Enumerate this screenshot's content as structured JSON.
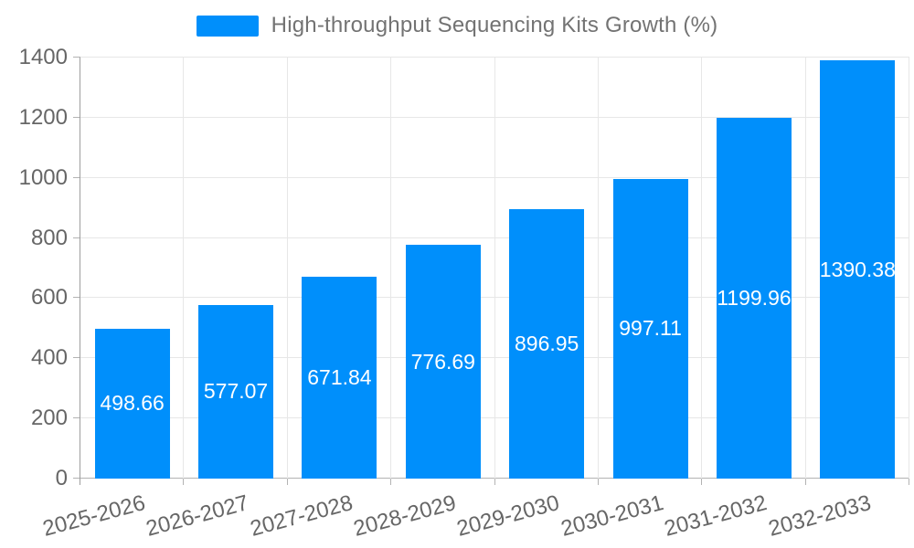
{
  "chart_data": {
    "type": "bar",
    "title": "High-throughput Sequencing Kits Growth (%)",
    "categories": [
      "2025-2026",
      "2026-2027",
      "2027-2028",
      "2028-2029",
      "2029-2030",
      "2030-2031",
      "2031-2032",
      "2032-2033"
    ],
    "values": [
      498.66,
      577.07,
      671.84,
      776.69,
      896.95,
      997.11,
      1199.96,
      1390.38
    ],
    "value_labels": [
      "498.66",
      "577.07",
      "671.84",
      "776.69",
      "896.95",
      "997.11",
      "1199.96",
      "1390.38"
    ],
    "xlabel": "",
    "ylabel": "",
    "ylim": [
      0,
      1400
    ],
    "ytick_step": 200,
    "yticks": [
      0,
      200,
      400,
      600,
      800,
      1000,
      1200,
      1400
    ],
    "ytick_labels": [
      "0",
      "200",
      "400",
      "600",
      "800",
      "1000",
      "1200",
      "1400"
    ],
    "grid": true,
    "legend_position": "top",
    "colors": {
      "bar": "#008FFB",
      "grid": "#e7e7e7",
      "y_axis_line": "#9e9e9e",
      "x_axis_line": "#b3b3b3",
      "tick": "#b3b3b3",
      "axis_label_text": "#666666",
      "legend_text": "#737373",
      "value_label_text": "#ffffff",
      "background": "#ffffff"
    }
  }
}
